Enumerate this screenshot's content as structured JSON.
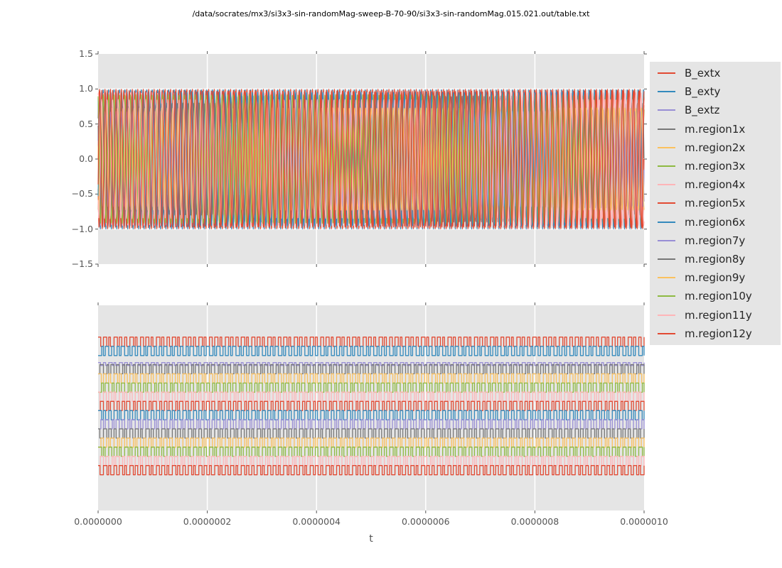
{
  "title": "/data/socrates/mx3/si3x3-sin-randomMag-sweep-B-70-90/si3x3-sin-randomMag.015.021.out/table.txt",
  "xlabel": "t",
  "palette": {
    "figure_bg": "#ffffff",
    "axes_bg": "#e5e5e5",
    "grid": "#ffffff",
    "tick": "#555555",
    "tick_label": "#555555",
    "legend_bg": "#e5e5e5",
    "legend_text": "#262626",
    "title_text": "#000000",
    "cycle": [
      "#E24A33",
      "#348ABD",
      "#988ED5",
      "#777777",
      "#FBC15E",
      "#8EBA42",
      "#FFB5B8"
    ]
  },
  "chart_data": [
    {
      "type": "line",
      "panel": "top",
      "description": "15 overlapping high-frequency sinusoids (~100 cycles over 1e-6 s, ~100 MHz) spanning -1 to 1",
      "xlim": [
        0,
        1e-06
      ],
      "ylim": [
        -1.5,
        1.5
      ],
      "x_tick_values": [
        0,
        2e-07,
        4e-07,
        6e-07,
        8e-07,
        1e-06
      ],
      "y_tick_values": [
        1.5,
        1.0,
        0.5,
        0.0,
        -0.5,
        -1.0,
        -1.5
      ],
      "y_tick_labels": [
        "1.5",
        "1.0",
        "0.5",
        "0.0",
        "−0.5",
        "−1.0",
        "−1.5"
      ],
      "grid": "white vertical + horizontal gridlines",
      "series": [
        {
          "name": "B_extx",
          "color": "#E24A33",
          "waveform": "sine",
          "amplitude": 1.0,
          "cycles": 100.0,
          "phase": 0.0
        },
        {
          "name": "B_exty",
          "color": "#348ABD",
          "waveform": "sine",
          "amplitude": 1.0,
          "cycles": 100.0,
          "phase": 2.09
        },
        {
          "name": "B_extz",
          "color": "#988ED5",
          "waveform": "sine",
          "amplitude": 0.7,
          "cycles": 100.0,
          "phase": 4.19
        },
        {
          "name": "m.region1x",
          "color": "#777777",
          "waveform": "sine",
          "amplitude": 0.9,
          "cycles": 99.2,
          "phase": 0.7
        },
        {
          "name": "m.region2x",
          "color": "#FBC15E",
          "waveform": "sine",
          "amplitude": 0.82,
          "cycles": 100.8,
          "phase": 2.9
        },
        {
          "name": "m.region3x",
          "color": "#8EBA42",
          "waveform": "sine",
          "amplitude": 0.75,
          "cycles": 98.4,
          "phase": 5.0
        },
        {
          "name": "m.region4x",
          "color": "#FFB5B8",
          "waveform": "sine",
          "amplitude": 0.95,
          "cycles": 101.6,
          "phase": 1.3
        },
        {
          "name": "m.region5x",
          "color": "#E24A33",
          "waveform": "sine",
          "amplitude": 0.98,
          "cycles": 99.6,
          "phase": 3.6
        },
        {
          "name": "m.region6x",
          "color": "#348ABD",
          "waveform": "sine",
          "amplitude": 0.96,
          "cycles": 100.4,
          "phase": 5.7
        },
        {
          "name": "m.region7y",
          "color": "#988ED5",
          "waveform": "sine",
          "amplitude": 0.68,
          "cycles": 97.9,
          "phase": 0.4
        },
        {
          "name": "m.region8y",
          "color": "#777777",
          "waveform": "sine",
          "amplitude": 0.8,
          "cycles": 102.1,
          "phase": 2.5
        },
        {
          "name": "m.region9y",
          "color": "#FBC15E",
          "waveform": "sine",
          "amplitude": 0.73,
          "cycles": 99.0,
          "phase": 4.6
        },
        {
          "name": "m.region10y",
          "color": "#8EBA42",
          "waveform": "sine",
          "amplitude": 0.92,
          "cycles": 101.0,
          "phase": 1.8
        },
        {
          "name": "m.region11y",
          "color": "#FFB5B8",
          "waveform": "sine",
          "amplitude": 0.85,
          "cycles": 98.7,
          "phase": 3.9
        },
        {
          "name": "m.region12y",
          "color": "#E24A33",
          "waveform": "sine",
          "amplitude": 0.97,
          "cycles": 101.3,
          "phase": 5.9
        }
      ]
    },
    {
      "type": "line",
      "panel": "bottom",
      "description": "Same 15 series shown as vertically offset square-wave (switching) traces, ~103 cycles over span; no y tick labels",
      "xlim": [
        0,
        1e-06
      ],
      "x_tick_values": [
        0,
        2e-07,
        4e-07,
        6e-07,
        8e-07,
        1e-06
      ],
      "x_tick_labels": [
        "0.0000000",
        "0.0000002",
        "0.0000004",
        "0.0000006",
        "0.0000008",
        "0.0000010"
      ],
      "xlabel": "t",
      "y_tick_labels": [],
      "grid": "white vertical gridlines",
      "series": [
        {
          "name": "B_extx",
          "color": "#E24A33",
          "waveform": "square",
          "cycles": 103,
          "high_frac": 0.155,
          "low_frac": 0.2
        },
        {
          "name": "B_exty",
          "color": "#348ABD",
          "waveform": "square",
          "cycles": 103,
          "high_frac": 0.2,
          "low_frac": 0.245
        },
        {
          "name": "B_extz",
          "color": "#988ED5",
          "waveform": "square",
          "cycles": 103,
          "high_frac": 0.279,
          "low_frac": 0.293
        },
        {
          "name": "m.region1x",
          "color": "#777777",
          "waveform": "square",
          "cycles": 103,
          "high_frac": 0.289,
          "low_frac": 0.334
        },
        {
          "name": "m.region2x",
          "color": "#FBC15E",
          "waveform": "square",
          "cycles": 103,
          "high_frac": 0.334,
          "low_frac": 0.379
        },
        {
          "name": "m.region3x",
          "color": "#8EBA42",
          "waveform": "square",
          "cycles": 103,
          "high_frac": 0.379,
          "low_frac": 0.424
        },
        {
          "name": "m.region4x",
          "color": "#FFB5B8",
          "waveform": "square",
          "cycles": 103,
          "high_frac": 0.423,
          "low_frac": 0.468
        },
        {
          "name": "m.region5x",
          "color": "#E24A33",
          "waveform": "square",
          "cycles": 103,
          "high_frac": 0.468,
          "low_frac": 0.513
        },
        {
          "name": "m.region6x",
          "color": "#348ABD",
          "waveform": "square",
          "cycles": 103,
          "high_frac": 0.513,
          "low_frac": 0.558
        },
        {
          "name": "m.region7y",
          "color": "#988ED5",
          "waveform": "square",
          "cycles": 103,
          "high_frac": 0.557,
          "low_frac": 0.602
        },
        {
          "name": "m.region8y",
          "color": "#777777",
          "waveform": "square",
          "cycles": 103,
          "high_frac": 0.602,
          "low_frac": 0.647
        },
        {
          "name": "m.region9y",
          "color": "#FBC15E",
          "waveform": "square",
          "cycles": 103,
          "high_frac": 0.647,
          "low_frac": 0.692
        },
        {
          "name": "m.region10y",
          "color": "#8EBA42",
          "waveform": "square",
          "cycles": 103,
          "high_frac": 0.691,
          "low_frac": 0.736
        },
        {
          "name": "m.region11y",
          "color": "#FFB5B8",
          "waveform": "square",
          "cycles": 103,
          "high_frac": 0.736,
          "low_frac": 0.781
        },
        {
          "name": "m.region12y",
          "color": "#E24A33",
          "waveform": "square",
          "cycles": 103,
          "high_frac": 0.781,
          "low_frac": 0.826
        }
      ]
    }
  ],
  "legend": {
    "position": "upper right, outside plot",
    "entries": [
      {
        "label": "B_extx",
        "color": "#E24A33"
      },
      {
        "label": "B_exty",
        "color": "#348ABD"
      },
      {
        "label": "B_extz",
        "color": "#988ED5"
      },
      {
        "label": "m.region1x",
        "color": "#777777"
      },
      {
        "label": "m.region2x",
        "color": "#FBC15E"
      },
      {
        "label": "m.region3x",
        "color": "#8EBA42"
      },
      {
        "label": "m.region4x",
        "color": "#FFB5B8"
      },
      {
        "label": "m.region5x",
        "color": "#E24A33"
      },
      {
        "label": "m.region6x",
        "color": "#348ABD"
      },
      {
        "label": "m.region7y",
        "color": "#988ED5"
      },
      {
        "label": "m.region8y",
        "color": "#777777"
      },
      {
        "label": "m.region9y",
        "color": "#FBC15E"
      },
      {
        "label": "m.region10y",
        "color": "#8EBA42"
      },
      {
        "label": "m.region11y",
        "color": "#FFB5B8"
      },
      {
        "label": "m.region12y",
        "color": "#E24A33"
      }
    ]
  }
}
